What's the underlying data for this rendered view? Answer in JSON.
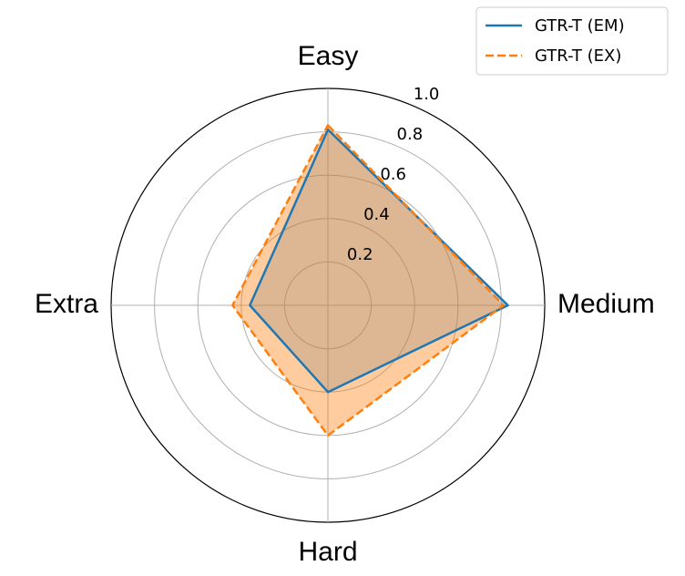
{
  "chart_data": {
    "type": "radar",
    "categories": [
      "Easy",
      "Medium",
      "Hard",
      "Extra"
    ],
    "series": [
      {
        "name": "GTR-T (EM)",
        "color": "#1f77b4",
        "linestyle": "solid",
        "fill_opacity": 0.25,
        "values": [
          0.81,
          0.83,
          0.4,
          0.36
        ]
      },
      {
        "name": "GTR-T (EX)",
        "color": "#ff7f0e",
        "linestyle": "dashed",
        "fill_opacity": 0.4,
        "values": [
          0.83,
          0.81,
          0.6,
          0.44
        ]
      }
    ],
    "ylim": [
      0,
      1.0
    ],
    "yticks": [
      0.2,
      0.4,
      0.6,
      0.8,
      {
        "value": 1.0,
        "label": "1.0"
      }
    ],
    "grid": true,
    "legend": "upper right"
  }
}
